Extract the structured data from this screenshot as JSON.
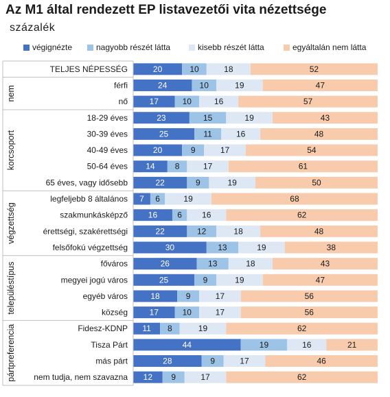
{
  "title": "Az M1 által rendezett EP listavezetői vita nézettsége",
  "subtitle": "százalék",
  "colors": {
    "végignézte": "#4472c4",
    "nagyobb részét látta": "#9dc3e6",
    "kisebb részét látta": "#dde8f4",
    "egyáltalán nem látta": "#f8cbad",
    "text_dark": "#1a1a1a",
    "text_light": "#ffffff"
  },
  "legend": [
    {
      "label": "végignézte",
      "color": "#4472c4"
    },
    {
      "label": "nagyobb részét látta",
      "color": "#9dc3e6"
    },
    {
      "label": "kisebb részét látta",
      "color": "#dde8f4"
    },
    {
      "label": "egyáltalán nem látta",
      "color": "#f8cbad"
    }
  ],
  "chart_data": {
    "type": "bar",
    "orientation": "horizontal",
    "stacked": true,
    "percent_stacked": true,
    "title": "Az M1 által rendezett EP listavezetői vita nézettsége",
    "subtitle": "százalék",
    "legend_position": "top",
    "series_names": [
      "végignézte",
      "nagyobb részét látta",
      "kisebb részét látta",
      "egyáltalán nem látta"
    ],
    "groups": [
      {
        "name": "",
        "rows": [
          {
            "label": "TELJES NÉPESSÉG",
            "values": [
              20,
              10,
              18,
              52
            ]
          }
        ]
      },
      {
        "name": "nem",
        "rows": [
          {
            "label": "férfi",
            "values": [
              24,
              10,
              19,
              47
            ]
          },
          {
            "label": "nő",
            "values": [
              17,
              10,
              16,
              57
            ]
          }
        ]
      },
      {
        "name": "korcsoport",
        "rows": [
          {
            "label": "18-29 éves",
            "values": [
              23,
              15,
              19,
              43
            ]
          },
          {
            "label": "30-39 éves",
            "values": [
              25,
              11,
              16,
              48
            ]
          },
          {
            "label": "40-49 éves",
            "values": [
              20,
              9,
              17,
              54
            ]
          },
          {
            "label": "50-64 éves",
            "values": [
              14,
              8,
              17,
              61
            ]
          },
          {
            "label": "65 éves, vagy idősebb",
            "values": [
              22,
              9,
              19,
              50
            ]
          }
        ]
      },
      {
        "name": "végzettség",
        "rows": [
          {
            "label": "legfeljebb 8 általános",
            "values": [
              7,
              6,
              19,
              68
            ]
          },
          {
            "label": "szakmunkásképző",
            "values": [
              16,
              6,
              16,
              62
            ]
          },
          {
            "label": "érettségi, szakérettségi",
            "values": [
              22,
              12,
              18,
              48
            ]
          },
          {
            "label": "felsőfokú végzettség",
            "values": [
              30,
              13,
              19,
              38
            ]
          }
        ]
      },
      {
        "name": "településtípus",
        "rows": [
          {
            "label": "főváros",
            "values": [
              26,
              13,
              18,
              43
            ]
          },
          {
            "label": "megyei jogú város",
            "values": [
              25,
              9,
              19,
              47
            ]
          },
          {
            "label": "egyéb város",
            "values": [
              18,
              9,
              17,
              56
            ]
          },
          {
            "label": "község",
            "values": [
              17,
              10,
              17,
              56
            ]
          }
        ]
      },
      {
        "name": "pártpreferencia",
        "rows": [
          {
            "label": "Fidesz-KDNP",
            "values": [
              11,
              8,
              19,
              62
            ]
          },
          {
            "label": "Tisza Párt",
            "values": [
              44,
              19,
              16,
              21
            ]
          },
          {
            "label": "más párt",
            "values": [
              28,
              9,
              17,
              46
            ]
          },
          {
            "label": "nem tudja, nem szavazna",
            "values": [
              12,
              9,
              17,
              62
            ]
          }
        ]
      }
    ]
  }
}
